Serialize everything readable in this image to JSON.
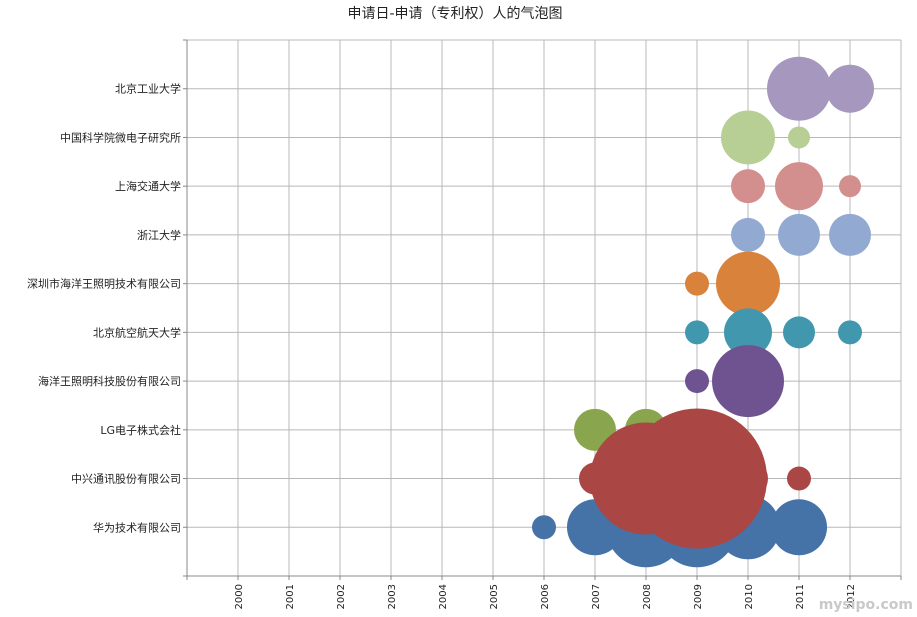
{
  "chart_data": {
    "type": "bubble",
    "title": "申请日-申请（专利权）人的气泡图",
    "x_ticks": [
      "2000",
      "2001",
      "2002",
      "2003",
      "2004",
      "2005",
      "2006",
      "2007",
      "2008",
      "2009",
      "2010",
      "2011",
      "2012"
    ],
    "y_categories": [
      "北京工业大学",
      "中国科学院微电子研究所",
      "上海交通大学",
      "浙江大学",
      "深圳市海洋王照明技术有限公司",
      "北京航空航天大学",
      "海洋王照明科技股份有限公司",
      "LG电子株式会社",
      "中兴通讯股份有限公司",
      "华为技术有限公司"
    ],
    "xlim": [
      1999,
      2013
    ],
    "grid": true,
    "legend": "none",
    "series": [
      {
        "category": "北京工业大学",
        "color": "#A597BD",
        "points": [
          {
            "x": 2011,
            "size": 32
          },
          {
            "x": 2012,
            "size": 24
          }
        ]
      },
      {
        "category": "中国科学院微电子研究所",
        "color": "#B7CF94",
        "points": [
          {
            "x": 2010,
            "size": 27
          },
          {
            "x": 2011,
            "size": 11
          }
        ]
      },
      {
        "category": "上海交通大学",
        "color": "#D28F8E",
        "points": [
          {
            "x": 2010,
            "size": 17
          },
          {
            "x": 2011,
            "size": 24
          },
          {
            "x": 2012,
            "size": 11
          }
        ]
      },
      {
        "category": "浙江大学",
        "color": "#92A9D1",
        "points": [
          {
            "x": 2010,
            "size": 17
          },
          {
            "x": 2011,
            "size": 21
          },
          {
            "x": 2012,
            "size": 21
          }
        ]
      },
      {
        "category": "深圳市海洋王照明技术有限公司",
        "color": "#D9823B",
        "points": [
          {
            "x": 2009,
            "size": 12
          },
          {
            "x": 2010,
            "size": 32
          }
        ]
      },
      {
        "category": "北京航空航天大学",
        "color": "#4198AE",
        "points": [
          {
            "x": 2009,
            "size": 12
          },
          {
            "x": 2010,
            "size": 24
          },
          {
            "x": 2011,
            "size": 16
          },
          {
            "x": 2012,
            "size": 12
          }
        ]
      },
      {
        "category": "海洋王照明科技股份有限公司",
        "color": "#6F5290",
        "points": [
          {
            "x": 2009,
            "size": 12
          },
          {
            "x": 2010,
            "size": 36
          }
        ]
      },
      {
        "category": "LG电子株式会社",
        "color": "#89A54E",
        "points": [
          {
            "x": 2007,
            "size": 21
          },
          {
            "x": 2008,
            "size": 21
          },
          {
            "x": 2009,
            "size": 17
          }
        ]
      },
      {
        "category": "华为技术有限公司",
        "color": "#4572A7",
        "points": [
          {
            "x": 2006,
            "size": 12
          },
          {
            "x": 2007,
            "size": 28
          },
          {
            "x": 2008,
            "size": 40
          },
          {
            "x": 2009,
            "size": 40
          },
          {
            "x": 2010,
            "size": 32
          },
          {
            "x": 2011,
            "size": 28
          }
        ]
      },
      {
        "category": "中兴通讯股份有限公司",
        "color": "#AA4643",
        "points": [
          {
            "x": 2007,
            "size": 16
          },
          {
            "x": 2008,
            "size": 56
          },
          {
            "x": 2009,
            "size": 70
          },
          {
            "x": 2010,
            "size": 20
          },
          {
            "x": 2011,
            "size": 12
          }
        ]
      }
    ]
  },
  "watermark": "mysipo.com"
}
